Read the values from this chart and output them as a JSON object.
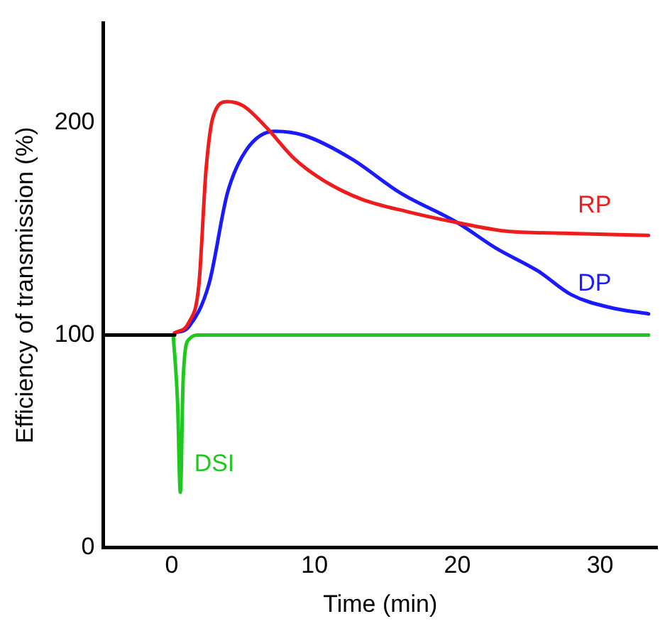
{
  "chart_data": {
    "type": "line",
    "xlabel": "Time (min)",
    "ylabel": "Efficiency of transmission (%)",
    "xlim": [
      -4.8,
      34
    ],
    "xticks": [
      0,
      10,
      20,
      30
    ],
    "ylim": [
      0,
      247
    ],
    "yticks": [
      0,
      100,
      200
    ],
    "grid": false,
    "legend": false,
    "marker": "none",
    "line_style": "solid",
    "series": [
      {
        "color": "#000000",
        "x": [
          -4.8,
          0.2
        ],
        "values": [
          100,
          100
        ]
      },
      {
        "name": "RP",
        "color": "#ee1c1c",
        "x": [
          0.2,
          1.2,
          1.9,
          2.4,
          2.9,
          3.9,
          5,
          6.6,
          8.6,
          10.6,
          13.3,
          16.6,
          20,
          23.4,
          27.4,
          33.4
        ],
        "values": [
          101,
          106,
          124,
          178,
          203,
          210,
          208,
          198,
          183,
          173,
          164,
          158,
          153,
          149,
          148,
          147
        ]
      },
      {
        "name": "DP",
        "color": "#1a1aff",
        "x": [
          0.2,
          1.2,
          2.6,
          3.9,
          5.2,
          7.2,
          9.3,
          12.6,
          16,
          20,
          22.7,
          25.7,
          28,
          30.7,
          33.4
        ],
        "values": [
          101,
          104,
          124,
          167,
          187,
          196,
          194,
          183,
          167,
          153,
          141,
          130,
          119,
          113,
          110
        ]
      },
      {
        "name": "DSI",
        "color": "#1ec81e",
        "x": [
          0.1,
          0.4,
          0.6,
          0.8,
          1.2,
          1.9,
          33.4
        ],
        "values": [
          100,
          69,
          26,
          80,
          98,
          100,
          100
        ]
      }
    ]
  }
}
